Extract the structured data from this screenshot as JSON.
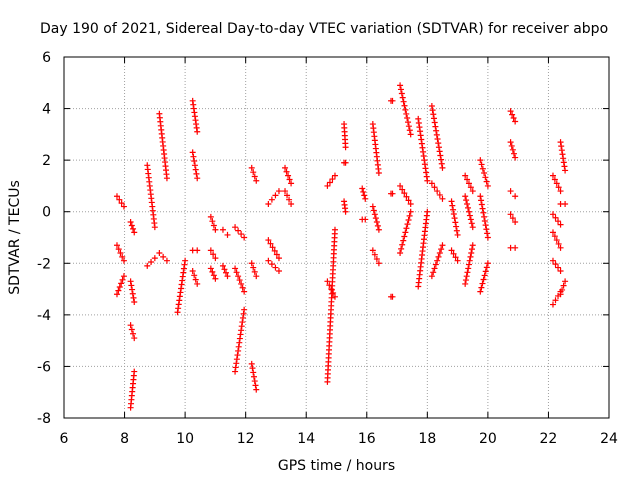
{
  "chart_data": {
    "type": "scatter",
    "title": "Day 190 of 2021, Sidereal Day-to-day VTEC variation (SDTVAR) for receiver abpo",
    "xlabel": "GPS time / hours",
    "ylabel": "SDTVAR / TECUs",
    "xlim": [
      6,
      24
    ],
    "ylim": [
      -8,
      6
    ],
    "xticks": [
      "6",
      "8",
      "10",
      "12",
      "14",
      "16",
      "18",
      "20",
      "22",
      "24"
    ],
    "yticks": [
      "-8",
      "-6",
      "-4",
      "-2",
      "0",
      "2",
      "4",
      "6"
    ],
    "grid": true,
    "marker": "+",
    "color": "#ff0000",
    "segments": [
      {
        "x0": 7.75,
        "x1": 7.98,
        "y0": 0.6,
        "y1": 0.2
      },
      {
        "x0": 7.75,
        "x1": 7.98,
        "y0": -1.3,
        "y1": -1.9
      },
      {
        "x0": 7.75,
        "x1": 7.98,
        "y0": -3.2,
        "y1": -2.5
      },
      {
        "x0": 8.2,
        "x1": 8.32,
        "y0": -0.4,
        "y1": -0.8
      },
      {
        "x0": 8.2,
        "x1": 8.32,
        "y0": -2.7,
        "y1": -3.5
      },
      {
        "x0": 8.2,
        "x1": 8.32,
        "y0": -4.4,
        "y1": -4.9
      },
      {
        "x0": 8.2,
        "x1": 8.32,
        "y0": -7.6,
        "y1": -6.2
      },
      {
        "x0": 8.75,
        "x1": 9.0,
        "y0": 1.8,
        "y1": -0.6
      },
      {
        "x0": 8.75,
        "x1": 9.0,
        "y0": -2.1,
        "y1": -1.8
      },
      {
        "x0": 9.15,
        "x1": 9.4,
        "y0": 3.8,
        "y1": 1.3
      },
      {
        "x0": 9.15,
        "x1": 9.4,
        "y0": -1.6,
        "y1": -1.9
      },
      {
        "x0": 9.75,
        "x1": 10.0,
        "y0": -3.9,
        "y1": -1.9
      },
      {
        "x0": 10.25,
        "x1": 10.4,
        "y0": 4.3,
        "y1": 3.1
      },
      {
        "x0": 10.25,
        "x1": 10.4,
        "y0": 2.3,
        "y1": 1.3
      },
      {
        "x0": 10.25,
        "x1": 10.4,
        "y0": -1.5,
        "y1": -1.5
      },
      {
        "x0": 10.25,
        "x1": 10.4,
        "y0": -2.3,
        "y1": -2.8
      },
      {
        "x0": 10.85,
        "x1": 11.0,
        "y0": -0.2,
        "y1": -0.7
      },
      {
        "x0": 10.85,
        "x1": 11.0,
        "y0": -1.5,
        "y1": -1.8
      },
      {
        "x0": 10.85,
        "x1": 11.0,
        "y0": -2.2,
        "y1": -2.6
      },
      {
        "x0": 11.25,
        "x1": 11.4,
        "y0": -0.7,
        "y1": -0.9
      },
      {
        "x0": 11.25,
        "x1": 11.4,
        "y0": -2.1,
        "y1": -2.5
      },
      {
        "x0": 11.65,
        "x1": 11.95,
        "y0": -0.6,
        "y1": -1.0
      },
      {
        "x0": 11.65,
        "x1": 11.95,
        "y0": -2.2,
        "y1": -3.1
      },
      {
        "x0": 11.65,
        "x1": 11.95,
        "y0": -6.2,
        "y1": -3.8
      },
      {
        "x0": 12.2,
        "x1": 12.35,
        "y0": 1.7,
        "y1": 1.2
      },
      {
        "x0": 12.2,
        "x1": 12.35,
        "y0": -2.0,
        "y1": -2.5
      },
      {
        "x0": 12.2,
        "x1": 12.35,
        "y0": -5.9,
        "y1": -6.9
      },
      {
        "x0": 12.75,
        "x1": 13.1,
        "y0": 0.3,
        "y1": 0.8
      },
      {
        "x0": 12.75,
        "x1": 13.1,
        "y0": -1.1,
        "y1": -1.8
      },
      {
        "x0": 12.75,
        "x1": 13.1,
        "y0": -1.9,
        "y1": -2.3
      },
      {
        "x0": 13.3,
        "x1": 13.5,
        "y0": 1.7,
        "y1": 1.1
      },
      {
        "x0": 13.3,
        "x1": 13.5,
        "y0": 0.8,
        "y1": 0.3
      },
      {
        "x0": 14.7,
        "x1": 14.95,
        "y0": 1.0,
        "y1": 1.4
      },
      {
        "x0": 14.7,
        "x1": 14.95,
        "y0": -6.6,
        "y1": -0.7
      },
      {
        "x0": 14.7,
        "x1": 14.95,
        "y0": -2.7,
        "y1": -3.3
      },
      {
        "x0": 15.25,
        "x1": 15.3,
        "y0": 3.4,
        "y1": 2.5
      },
      {
        "x0": 15.25,
        "x1": 15.3,
        "y0": 1.9,
        "y1": 1.9
      },
      {
        "x0": 15.25,
        "x1": 15.3,
        "y0": 0.4,
        "y1": 0.0
      },
      {
        "x0": 15.85,
        "x1": 15.95,
        "y0": 0.9,
        "y1": 0.5
      },
      {
        "x0": 15.85,
        "x1": 15.95,
        "y0": -0.3,
        "y1": -0.3
      },
      {
        "x0": 16.2,
        "x1": 16.4,
        "y0": 3.4,
        "y1": 1.5
      },
      {
        "x0": 16.2,
        "x1": 16.4,
        "y0": 0.2,
        "y1": -0.7
      },
      {
        "x0": 16.2,
        "x1": 16.4,
        "y0": -1.5,
        "y1": -2.0
      },
      {
        "x0": 16.8,
        "x1": 16.85,
        "y0": 4.3,
        "y1": 4.3
      },
      {
        "x0": 16.8,
        "x1": 16.85,
        "y0": 0.7,
        "y1": 0.7
      },
      {
        "x0": 16.8,
        "x1": 16.85,
        "y0": -3.3,
        "y1": -3.3
      },
      {
        "x0": 17.1,
        "x1": 17.45,
        "y0": 4.9,
        "y1": 3.0
      },
      {
        "x0": 17.1,
        "x1": 17.45,
        "y0": 1.0,
        "y1": 0.3
      },
      {
        "x0": 17.1,
        "x1": 17.45,
        "y0": -1.6,
        "y1": 0.0
      },
      {
        "x0": 17.7,
        "x1": 18.0,
        "y0": 3.6,
        "y1": 1.2
      },
      {
        "x0": 17.7,
        "x1": 18.0,
        "y0": -2.9,
        "y1": 0.0
      },
      {
        "x0": 18.15,
        "x1": 18.5,
        "y0": 4.1,
        "y1": 1.7
      },
      {
        "x0": 18.15,
        "x1": 18.5,
        "y0": 1.1,
        "y1": 0.5
      },
      {
        "x0": 18.15,
        "x1": 18.5,
        "y0": -2.5,
        "y1": -1.3
      },
      {
        "x0": 18.8,
        "x1": 19.0,
        "y0": 0.4,
        "y1": -0.9
      },
      {
        "x0": 18.8,
        "x1": 19.0,
        "y0": -1.5,
        "y1": -1.9
      },
      {
        "x0": 19.25,
        "x1": 19.5,
        "y0": 1.4,
        "y1": 0.8
      },
      {
        "x0": 19.25,
        "x1": 19.5,
        "y0": 0.6,
        "y1": -0.6
      },
      {
        "x0": 19.25,
        "x1": 19.5,
        "y0": -2.8,
        "y1": -1.3
      },
      {
        "x0": 19.75,
        "x1": 20.0,
        "y0": 2.0,
        "y1": 1.0
      },
      {
        "x0": 19.75,
        "x1": 20.0,
        "y0": 0.6,
        "y1": -1.0
      },
      {
        "x0": 19.75,
        "x1": 20.0,
        "y0": -3.1,
        "y1": -2.0
      },
      {
        "x0": 20.75,
        "x1": 20.9,
        "y0": 3.9,
        "y1": 3.5
      },
      {
        "x0": 20.75,
        "x1": 20.9,
        "y0": 2.7,
        "y1": 2.1
      },
      {
        "x0": 20.75,
        "x1": 20.9,
        "y0": 0.8,
        "y1": 0.6
      },
      {
        "x0": 20.75,
        "x1": 20.9,
        "y0": -0.1,
        "y1": -0.4
      },
      {
        "x0": 20.75,
        "x1": 20.9,
        "y0": -1.4,
        "y1": -1.4
      },
      {
        "x0": 22.15,
        "x1": 22.4,
        "y0": 1.4,
        "y1": 0.8
      },
      {
        "x0": 22.15,
        "x1": 22.4,
        "y0": -0.1,
        "y1": -0.5
      },
      {
        "x0": 22.15,
        "x1": 22.4,
        "y0": -0.8,
        "y1": -1.4
      },
      {
        "x0": 22.15,
        "x1": 22.4,
        "y0": -1.9,
        "y1": -2.3
      },
      {
        "x0": 22.15,
        "x1": 22.4,
        "y0": -3.6,
        "y1": -3.1
      },
      {
        "x0": 22.4,
        "x1": 22.55,
        "y0": 2.7,
        "y1": 1.6
      },
      {
        "x0": 22.4,
        "x1": 22.55,
        "y0": 0.3,
        "y1": 0.3
      },
      {
        "x0": 22.4,
        "x1": 22.55,
        "y0": -3.2,
        "y1": -2.7
      }
    ]
  }
}
